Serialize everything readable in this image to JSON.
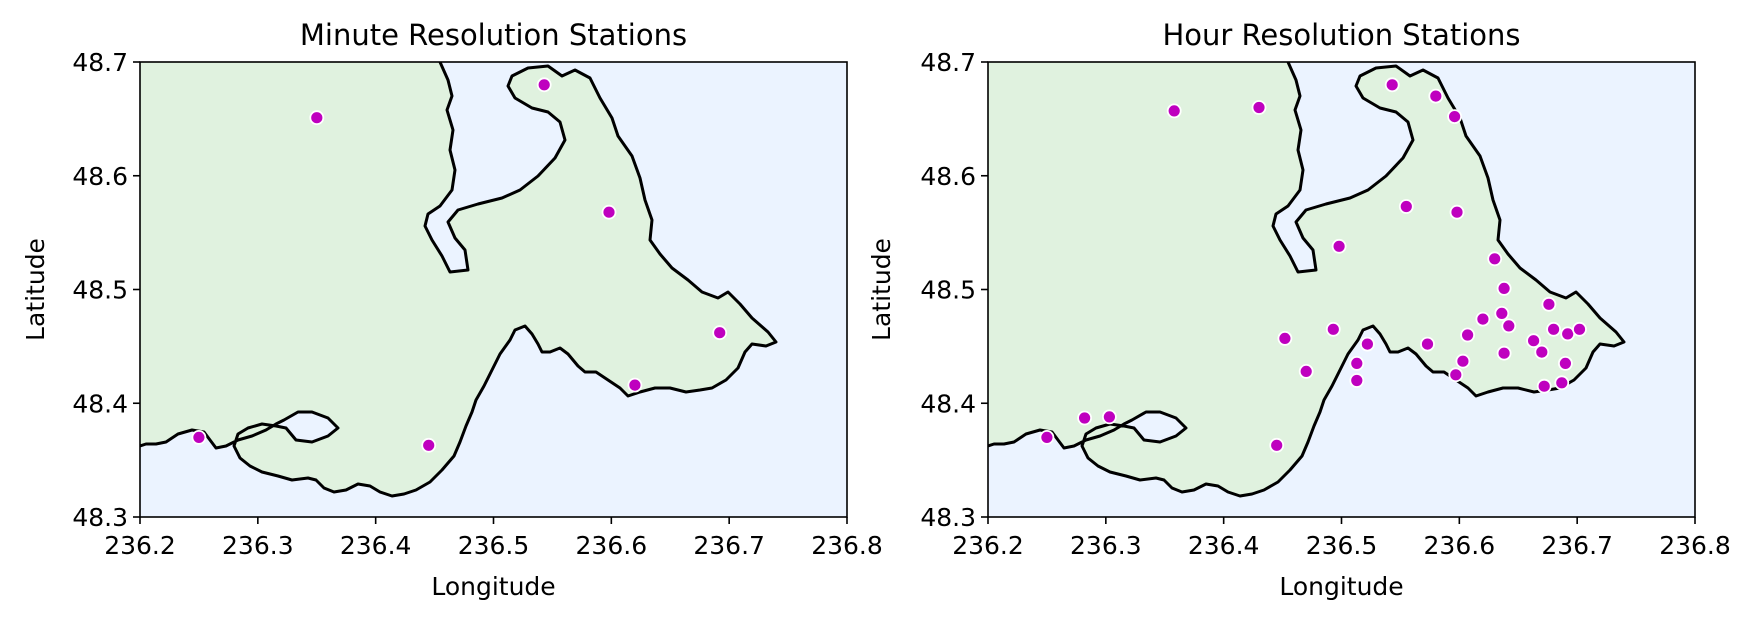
{
  "colors": {
    "ocean": "#ebf3ff",
    "land": "#e0f2df",
    "coast": "#000000",
    "marker": "#bf00bf",
    "marker_edge": "#ffffff"
  },
  "chart_data": [
    {
      "type": "scatter",
      "title": "Minute Resolution Stations",
      "xlabel": "Longitude",
      "ylabel": "Latitude",
      "xlim": [
        236.2,
        236.8
      ],
      "ylim": [
        48.3,
        48.7
      ],
      "xticks": [
        "236.2",
        "236.3",
        "236.4",
        "236.5",
        "236.6",
        "236.7",
        "236.8"
      ],
      "yticks": [
        "48.3",
        "48.4",
        "48.5",
        "48.6",
        "48.7"
      ],
      "grid": false,
      "points": [
        [
          236.25,
          48.37
        ],
        [
          236.35,
          48.651
        ],
        [
          236.445,
          48.363
        ],
        [
          236.543,
          48.68
        ],
        [
          236.598,
          48.568
        ],
        [
          236.62,
          48.416
        ],
        [
          236.692,
          48.462
        ]
      ]
    },
    {
      "type": "scatter",
      "title": "Hour Resolution Stations",
      "xlabel": "Longitude",
      "ylabel": "Latitude",
      "xlim": [
        236.2,
        236.8
      ],
      "ylim": [
        48.3,
        48.7
      ],
      "xticks": [
        "236.2",
        "236.3",
        "236.4",
        "236.5",
        "236.6",
        "236.7",
        "236.8"
      ],
      "yticks": [
        "48.3",
        "48.4",
        "48.5",
        "48.6",
        "48.7"
      ],
      "grid": false,
      "points": [
        [
          236.25,
          48.37
        ],
        [
          236.282,
          48.387
        ],
        [
          236.303,
          48.388
        ],
        [
          236.358,
          48.657
        ],
        [
          236.43,
          48.66
        ],
        [
          236.445,
          48.363
        ],
        [
          236.452,
          48.457
        ],
        [
          236.47,
          48.428
        ],
        [
          236.493,
          48.465
        ],
        [
          236.498,
          48.538
        ],
        [
          236.513,
          48.435
        ],
        [
          236.513,
          48.42
        ],
        [
          236.522,
          48.452
        ],
        [
          236.543,
          48.68
        ],
        [
          236.555,
          48.573
        ],
        [
          236.573,
          48.452
        ],
        [
          236.58,
          48.67
        ],
        [
          236.596,
          48.652
        ],
        [
          236.597,
          48.425
        ],
        [
          236.598,
          48.568
        ],
        [
          236.603,
          48.437
        ],
        [
          236.607,
          48.46
        ],
        [
          236.62,
          48.474
        ],
        [
          236.63,
          48.527
        ],
        [
          236.636,
          48.479
        ],
        [
          236.638,
          48.501
        ],
        [
          236.638,
          48.444
        ],
        [
          236.642,
          48.468
        ],
        [
          236.663,
          48.455
        ],
        [
          236.67,
          48.445
        ],
        [
          236.672,
          48.415
        ],
        [
          236.676,
          48.487
        ],
        [
          236.68,
          48.465
        ],
        [
          236.687,
          48.418
        ],
        [
          236.69,
          48.435
        ],
        [
          236.692,
          48.461
        ],
        [
          236.702,
          48.465
        ]
      ]
    }
  ]
}
